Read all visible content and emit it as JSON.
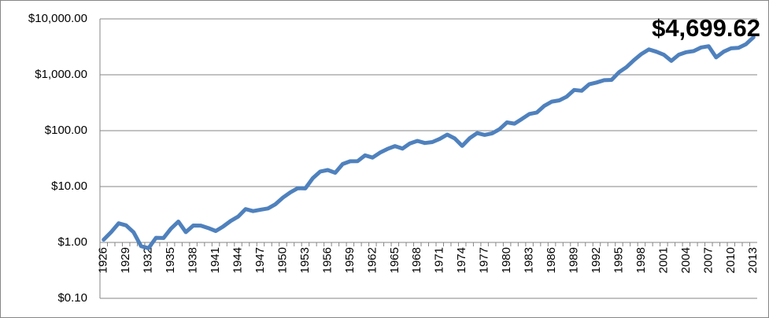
{
  "chart_data": {
    "type": "line",
    "annotation": "$4,699.62",
    "categories": [
      "1926",
      null,
      null,
      "1929",
      null,
      null,
      "1932",
      null,
      null,
      "1935",
      null,
      null,
      "1938",
      null,
      null,
      "1941",
      null,
      null,
      "1944",
      null,
      null,
      "1947",
      null,
      null,
      "1950",
      null,
      null,
      "1953",
      null,
      null,
      "1956",
      null,
      null,
      "1959",
      null,
      null,
      "1962",
      null,
      null,
      "1965",
      null,
      null,
      "1968",
      null,
      null,
      "1971",
      null,
      null,
      "1974",
      null,
      null,
      "1977",
      null,
      null,
      "1980",
      null,
      null,
      "1983",
      null,
      null,
      "1986",
      null,
      null,
      "1989",
      null,
      null,
      "1992",
      null,
      null,
      "1995",
      null,
      null,
      "1998",
      null,
      null,
      "2001",
      null,
      null,
      "2004",
      null,
      null,
      "2007",
      null,
      null,
      "2010",
      null,
      null,
      "2013"
    ],
    "series": [
      {
        "color": "#4f81bd",
        "values": [
          1.12,
          1.53,
          2.2,
          2.02,
          1.52,
          0.86,
          0.79,
          1.21,
          1.2,
          1.76,
          2.36,
          1.53,
          2.01,
          2.0,
          1.81,
          1.6,
          1.93,
          2.42,
          2.9,
          3.96,
          3.64,
          3.85,
          4.06,
          4.83,
          6.36,
          7.89,
          9.34,
          9.24,
          14.1,
          18.56,
          19.78,
          17.64,
          25.3,
          28.33,
          28.46,
          36.12,
          32.96,
          40.48,
          47.14,
          53.01,
          47.67,
          59.1,
          65.64,
          60.06,
          62.46,
          71.4,
          84.95,
          72.49,
          53.3,
          73.13,
          90.58,
          84.07,
          89.59,
          106.11,
          140.51,
          133.62,
          162.22,
          198.74,
          211.2,
          279.09,
          330.74,
          348.18,
          406.05,
          534.46,
          517.5,
          675.59,
          727.41,
          800.08,
          810.54,
          1113.92,
          1370.95,
          1828.33,
          2350.89,
          2845.63,
          2586.52,
          2279.13,
          1775.34,
          2284.8,
          2533.19,
          2657.56,
          3077.33,
          3246.39,
          2045.22,
          2586.52,
          2976.2,
          3039.07,
          3525.47,
          4699.62
        ]
      }
    ],
    "ylim": [
      0.1,
      10000
    ],
    "log_y": true,
    "xaxis_at": 1,
    "yticks": [
      {
        "value": 0.1,
        "label": "$0.10"
      },
      {
        "value": 1,
        "label": "$1.00"
      },
      {
        "value": 10,
        "label": "$10.00"
      },
      {
        "value": 100,
        "label": "$100.00"
      },
      {
        "value": 1000,
        "label": "$1,000.00"
      },
      {
        "value": 10000,
        "label": "$10,000.00"
      }
    ],
    "grid": true
  }
}
